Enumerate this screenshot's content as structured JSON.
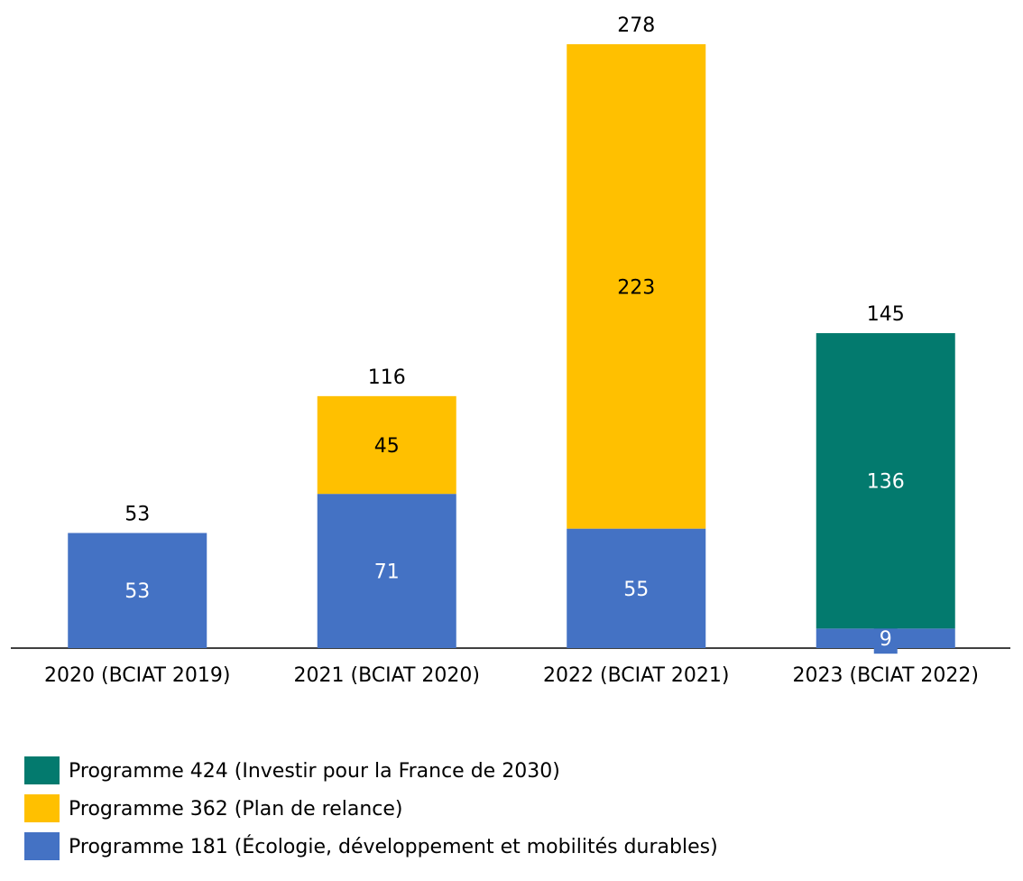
{
  "chart_data": {
    "type": "stacked-bar",
    "categories": [
      "2020 (BCIAT 2019)",
      "2021 (BCIAT 2020)",
      "2022 (BCIAT 2021)",
      "2023 (BCIAT 2022)"
    ],
    "series": [
      {
        "name": "Programme 181 (Écologie, développement et mobilités durables)",
        "color": "#4472c4",
        "label_color": "#ffffff",
        "values": [
          53,
          71,
          55,
          9
        ]
      },
      {
        "name": "Programme 362 (Plan de relance)",
        "color": "#ffc000",
        "label_color": "#000000",
        "values": [
          null,
          45,
          223,
          null
        ]
      },
      {
        "name": "Programme 424 (Investir pour la France de 2030)",
        "color": "#037a6e",
        "label_color": "#ffffff",
        "values": [
          null,
          null,
          null,
          136
        ]
      }
    ],
    "totals": [
      53,
      116,
      278,
      145
    ]
  }
}
